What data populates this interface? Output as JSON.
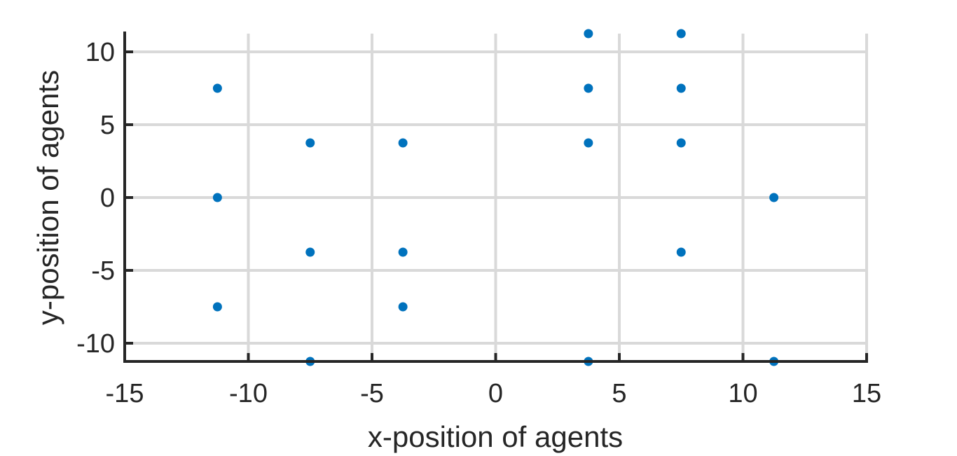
{
  "chart_data": {
    "type": "scatter",
    "title": "",
    "xlabel": "x-position of agents",
    "ylabel": "y-position of agents",
    "xlim": [
      -15,
      15
    ],
    "ylim": [
      -11.25,
      11.25
    ],
    "xticks": [
      -15,
      -10,
      -5,
      0,
      5,
      10,
      15
    ],
    "yticks": [
      -10,
      -5,
      0,
      5,
      10
    ],
    "grid": true,
    "marker_color": "#0072BD",
    "series": [
      {
        "x": [
          -11.25,
          -11.25,
          -11.25,
          -7.5,
          -7.5,
          -7.5,
          -3.75,
          -3.75,
          -3.75,
          3.75,
          3.75,
          3.75,
          3.75,
          7.5,
          7.5,
          7.5,
          7.5,
          11.25,
          11.25
        ],
        "y": [
          7.5,
          0,
          -7.5,
          3.75,
          -3.75,
          -11.25,
          3.75,
          -3.75,
          -7.5,
          11.25,
          7.5,
          3.75,
          -11.25,
          11.25,
          7.5,
          3.75,
          -3.75,
          0,
          -11.25
        ]
      }
    ]
  }
}
